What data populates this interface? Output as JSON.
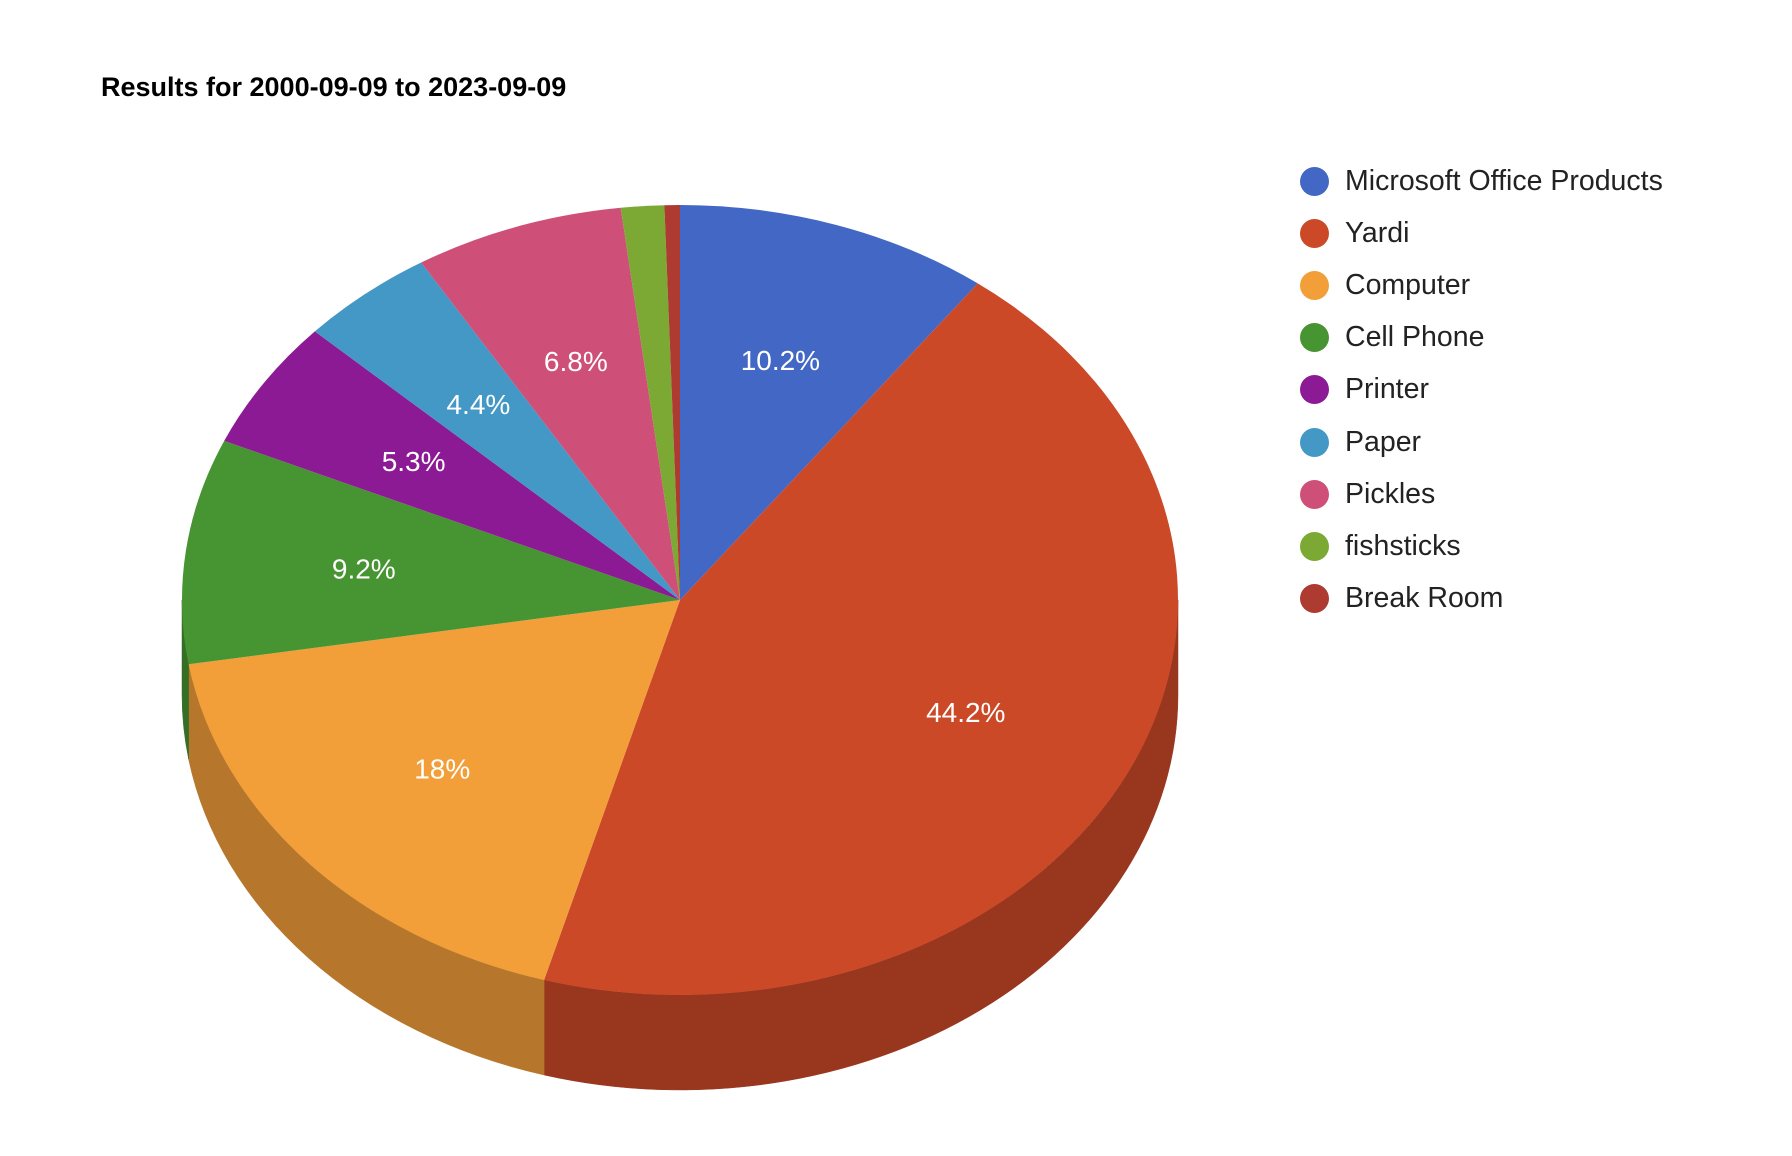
{
  "chart_data": {
    "type": "pie",
    "title": "Results for 2000-09-09 to 2023-09-09",
    "three_d": true,
    "legend_position": "right",
    "slices": [
      {
        "name": "Microsoft Office Products",
        "value": 10.2,
        "label": "10.2%",
        "color": "#4267C4"
      },
      {
        "name": "Yardi",
        "value": 44.2,
        "label": "44.2%",
        "color": "#CC4928"
      },
      {
        "name": "Computer",
        "value": 18,
        "label": "18%",
        "color": "#F29F3A"
      },
      {
        "name": "Cell Phone",
        "value": 9.2,
        "label": "9.2%",
        "color": "#479432"
      },
      {
        "name": "Printer",
        "value": 5.3,
        "label": "5.3%",
        "color": "#8C1A95"
      },
      {
        "name": "Paper",
        "value": 4.4,
        "label": "4.4%",
        "color": "#4398C5"
      },
      {
        "name": "Pickles",
        "value": 6.8,
        "label": "6.8%",
        "color": "#CE5078"
      },
      {
        "name": "fishsticks",
        "value": 1.4,
        "label": "",
        "color": "#7BA933"
      },
      {
        "name": "Break Room",
        "value": 0.5,
        "label": "",
        "color": "#AD3B31"
      }
    ]
  }
}
